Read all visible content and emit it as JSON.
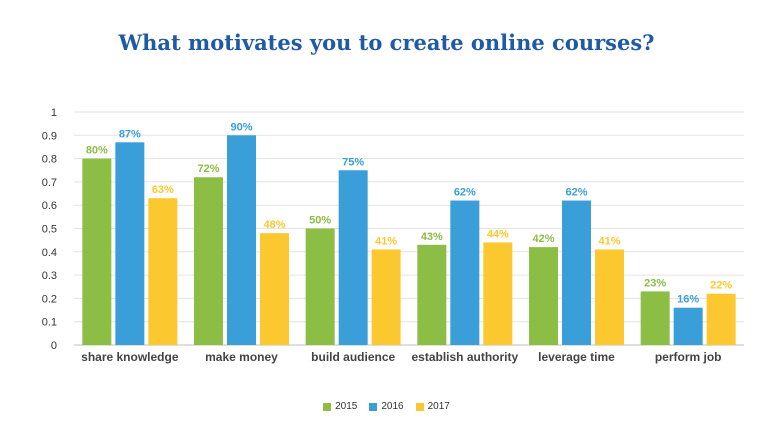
{
  "chart_data": {
    "type": "bar",
    "title": "What motivates you to create online courses?",
    "xlabel": "",
    "ylabel": "",
    "ylim": [
      0,
      1
    ],
    "yticks": [
      "0",
      "0.1",
      "0.2",
      "0.3",
      "0.4",
      "0.5",
      "0.6",
      "0.7",
      "0.8",
      "0.9",
      "1"
    ],
    "grid": true,
    "legend_position": "bottom",
    "categories": [
      "share knowledge",
      "make money",
      "build audience",
      "establish authority",
      "leverage time",
      "perform job"
    ],
    "series": [
      {
        "name": "2015",
        "color": "#8cbd45",
        "values": [
          0.8,
          0.72,
          0.5,
          0.43,
          0.42,
          0.23
        ],
        "labels": [
          "80%",
          "72%",
          "50%",
          "43%",
          "42%",
          "23%"
        ]
      },
      {
        "name": "2016",
        "color": "#3a9fd8",
        "values": [
          0.87,
          0.9,
          0.75,
          0.62,
          0.62,
          0.16
        ],
        "labels": [
          "87%",
          "90%",
          "75%",
          "62%",
          "62%",
          "16%"
        ]
      },
      {
        "name": "2017",
        "color": "#fcc82f",
        "values": [
          0.63,
          0.48,
          0.41,
          0.44,
          0.41,
          0.22
        ],
        "labels": [
          "63%",
          "48%",
          "41%",
          "44%",
          "41%",
          "22%"
        ]
      }
    ]
  }
}
